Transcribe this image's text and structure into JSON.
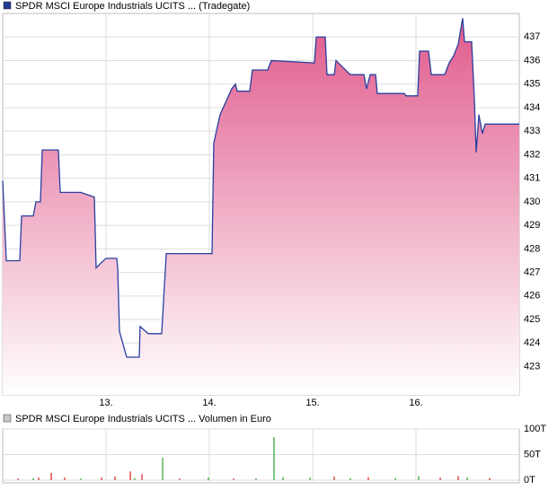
{
  "chart_data": [
    {
      "type": "area-line",
      "title": "SPDR MSCI Europe Industrials UCITS ...  (Tradegate)",
      "legend_color": "#1f3a93",
      "color": "#2a3f9f",
      "fill_top": "#e05a8c",
      "fill_bottom": "#ffffff",
      "grid": true,
      "x": [
        12.0,
        12.035,
        12.165,
        12.183,
        12.296,
        12.322,
        12.365,
        12.383,
        12.539,
        12.557,
        12.757,
        12.887,
        12.904,
        13.0,
        13.104,
        13.113,
        13.13,
        13.2,
        13.322,
        13.33,
        13.409,
        13.539,
        13.583,
        14.026,
        14.043,
        14.104,
        14.217,
        14.252,
        14.27,
        14.391,
        14.417,
        14.565,
        14.6,
        15.017,
        15.035,
        15.122,
        15.139,
        15.209,
        15.226,
        15.365,
        15.409,
        15.496,
        15.522,
        15.557,
        15.609,
        15.626,
        15.887,
        15.904,
        16.017,
        16.035,
        16.122,
        16.148,
        16.278,
        16.322,
        16.365,
        16.409,
        16.452,
        16.47,
        16.539,
        16.565,
        16.583,
        16.609,
        16.643,
        16.67,
        17.0
      ],
      "values": [
        430.9,
        427.5,
        427.5,
        429.4,
        429.4,
        430.0,
        430.0,
        432.2,
        432.2,
        430.4,
        430.4,
        430.2,
        427.2,
        427.6,
        427.6,
        427.2,
        424.5,
        423.4,
        423.4,
        424.7,
        424.4,
        424.4,
        427.8,
        427.8,
        432.5,
        433.7,
        434.8,
        435.0,
        434.7,
        434.7,
        435.6,
        435.6,
        436.0,
        435.9,
        437.0,
        437.0,
        435.4,
        435.4,
        436.0,
        435.4,
        435.4,
        435.4,
        434.8,
        435.4,
        435.4,
        434.6,
        434.6,
        434.5,
        434.5,
        436.4,
        436.4,
        435.4,
        435.4,
        435.9,
        436.2,
        436.7,
        437.8,
        436.8,
        436.8,
        434.4,
        432.1,
        433.7,
        432.9,
        433.3,
        433.3
      ],
      "xlim": [
        12,
        17
      ],
      "xticks": [
        {
          "value": 13,
          "label": "13."
        },
        {
          "value": 14,
          "label": "14."
        },
        {
          "value": 15,
          "label": "15."
        },
        {
          "value": 16,
          "label": "16."
        }
      ],
      "ylim": [
        421.8,
        438.0
      ],
      "yticks": [
        423,
        424,
        425,
        426,
        427,
        428,
        429,
        430,
        431,
        432,
        433,
        434,
        435,
        436,
        437
      ]
    },
    {
      "type": "volume",
      "title": "SPDR MSCI Europe Industrials UCITS ... Volumen in Euro",
      "legend_color": "#c8c8c8",
      "grid": true,
      "x": [
        12.148,
        12.296,
        12.348,
        12.47,
        12.6,
        12.757,
        12.957,
        13.087,
        13.235,
        13.278,
        13.348,
        13.548,
        13.713,
        13.991,
        14.235,
        14.452,
        14.626,
        14.713,
        14.974,
        15.209,
        15.365,
        15.539,
        15.8,
        16.026,
        16.235,
        16.409,
        16.496,
        16.713
      ],
      "values": [
        3,
        4,
        5,
        14,
        5,
        3,
        5,
        7,
        17,
        4,
        12,
        44,
        3,
        5,
        3,
        4,
        84,
        6,
        5,
        7,
        4,
        6,
        4,
        8,
        5,
        8,
        5,
        4
      ],
      "colors": [
        "#d62020",
        "#2ca02c",
        "#d62020",
        "#d62020",
        "#d62020",
        "#2ca02c",
        "#d62020",
        "#d62020",
        "#d62020",
        "#2ca02c",
        "#d62020",
        "#2ca02c",
        "#d62020",
        "#2ca02c",
        "#d62020",
        "#2ca02c",
        "#2ca02c",
        "#2ca02c",
        "#2ca02c",
        "#d62020",
        "#2ca02c",
        "#d62020",
        "#2ca02c",
        "#2ca02c",
        "#d62020",
        "#d62020",
        "#2ca02c",
        "#d62020"
      ],
      "xlim": [
        12,
        17
      ],
      "xticks": [
        13,
        14,
        15,
        16
      ],
      "ylim": [
        0,
        100
      ],
      "yticks": [
        {
          "value": 0,
          "label": "0T"
        },
        {
          "value": 50,
          "label": "50T"
        },
        {
          "value": 100,
          "label": "100T"
        }
      ]
    }
  ]
}
